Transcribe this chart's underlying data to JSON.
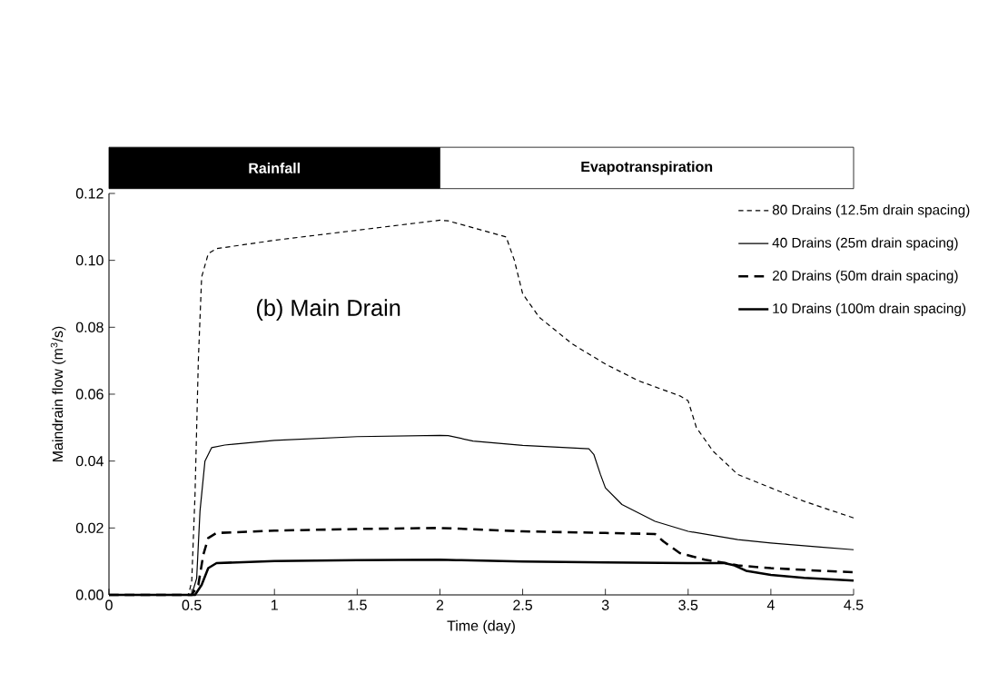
{
  "chart_data": {
    "type": "line",
    "xlabel": "Time (day)",
    "ylabel": "Maindrain flow (m$^{3}$/s)",
    "xlim": [
      0,
      4.5
    ],
    "xticks": [
      0,
      0.5,
      1,
      1.5,
      2,
      2.5,
      3,
      3.5,
      4,
      4.5
    ],
    "ylim": [
      0,
      0.12
    ],
    "yticks": [
      {
        "value": 0,
        "label": "0.00"
      },
      {
        "value": 0.02,
        "label": "0.02"
      },
      {
        "value": 0.04,
        "label": "0.04"
      },
      {
        "value": 0.06,
        "label": "0.06"
      },
      {
        "value": 0.08,
        "label": "0.08"
      },
      {
        "value": 0.1,
        "label": "0.10"
      },
      {
        "value": 0.12,
        "label": "0.12"
      }
    ],
    "grid": false,
    "legend": "top right",
    "marker": "none",
    "annotations": [
      "Rainfall",
      "Evapotranspiration",
      "(b) Main Drain"
    ],
    "series": [
      {
        "name": "80 Drains (12.5m drain spacing)",
        "color": "#000000",
        "line_style": "dashed",
        "x": [
          0,
          0.48,
          0.5,
          0.52,
          0.54,
          0.56,
          0.6,
          0.65,
          1.0,
          1.5,
          2.0,
          2.05,
          2.4,
          2.45,
          2.5,
          2.6,
          2.8,
          3.0,
          3.2,
          3.45,
          3.5,
          3.55,
          3.65,
          3.8,
          4.0,
          4.2,
          4.5
        ],
        "values": [
          0,
          0,
          0.004,
          0.03,
          0.07,
          0.095,
          0.102,
          0.1035,
          0.106,
          0.109,
          0.112,
          0.1118,
          0.107,
          0.1,
          0.09,
          0.083,
          0.075,
          0.069,
          0.064,
          0.0595,
          0.058,
          0.05,
          0.043,
          0.036,
          0.032,
          0.028,
          0.023
        ]
      },
      {
        "name": "40 Drains (25m drain spacing)",
        "color": "#000000",
        "line_style": "solid",
        "x": [
          0,
          0.5,
          0.53,
          0.55,
          0.58,
          0.62,
          0.7,
          1.0,
          1.5,
          2.0,
          2.05,
          2.2,
          2.5,
          2.9,
          2.93,
          2.97,
          3.0,
          3.1,
          3.3,
          3.5,
          3.8,
          4.0,
          4.3,
          4.5
        ],
        "values": [
          0,
          0,
          0.005,
          0.025,
          0.04,
          0.044,
          0.0448,
          0.0462,
          0.0473,
          0.0477,
          0.0476,
          0.046,
          0.0447,
          0.0437,
          0.042,
          0.036,
          0.032,
          0.027,
          0.022,
          0.019,
          0.0165,
          0.0155,
          0.0143,
          0.0135
        ]
      },
      {
        "name": "20 Drains (50m drain spacing)",
        "color": "#000000",
        "line_style": "dashed",
        "x": [
          0,
          0.5,
          0.54,
          0.57,
          0.6,
          0.65,
          1.0,
          1.5,
          2.0,
          2.1,
          2.5,
          3.0,
          3.3,
          3.35,
          3.45,
          3.6,
          3.75,
          3.8,
          4.0,
          4.3,
          4.5
        ],
        "values": [
          0,
          0,
          0.003,
          0.012,
          0.017,
          0.0185,
          0.0192,
          0.0197,
          0.02,
          0.0198,
          0.019,
          0.0185,
          0.0182,
          0.016,
          0.0125,
          0.0105,
          0.0093,
          0.0088,
          0.008,
          0.0072,
          0.0068
        ]
      },
      {
        "name": "10 Drains (100m drain spacing)",
        "color": "#000000",
        "line_style": "solid",
        "x": [
          0,
          0.52,
          0.56,
          0.6,
          0.65,
          1.0,
          1.5,
          2.0,
          2.1,
          2.5,
          3.0,
          3.5,
          3.72,
          3.78,
          3.85,
          4.0,
          4.2,
          4.5
        ],
        "values": [
          0,
          0,
          0.003,
          0.008,
          0.0095,
          0.0101,
          0.0104,
          0.0105,
          0.0104,
          0.01,
          0.0097,
          0.0095,
          0.0095,
          0.0088,
          0.0072,
          0.006,
          0.0051,
          0.0043
        ]
      }
    ]
  }
}
